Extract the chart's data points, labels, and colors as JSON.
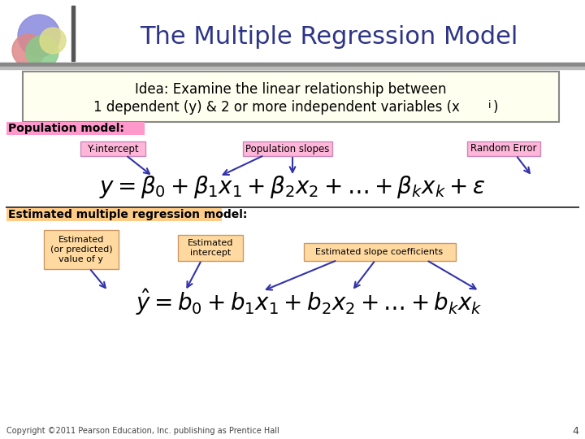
{
  "title": "The Multiple Regression Model",
  "title_color": "#2E3587",
  "bg_color": "#FFFFFF",
  "idea_box_color": "#FFFFF0",
  "idea_box_border": "#999999",
  "pop_label_bg": "#FF99CC",
  "pop_label_text": "Population model:",
  "est_label_bg": "#FFCC88",
  "est_label_text": "Estimated multiple regression model:",
  "annotation_pop_bg": "#FFB6D9",
  "annotation_est_bg": "#FFD9A0",
  "label_y_intercept": "Y-intercept",
  "label_pop_slopes": "Population slopes",
  "label_random_error": "Random Error",
  "label_est_value": "Estimated\n(or predicted)\nvalue of y",
  "label_est_intercept": "Estimated\nintercept",
  "label_est_slopes": "Estimated slope coefficients",
  "pop_eq": "$y = \\beta_0 + \\beta_1 x_1 + \\beta_2 x_2 + \\ldots + \\beta_k x_k + \\varepsilon$",
  "est_eq": "$\\hat{y} = b_0 + b_1 x_1 + b_2 x_2 + \\ldots + b_k x_k$",
  "footer": "Copyright ©2011 Pearson Education, Inc. publishing as Prentice Hall",
  "page_num": "4",
  "arrow_color": "#3333AA"
}
